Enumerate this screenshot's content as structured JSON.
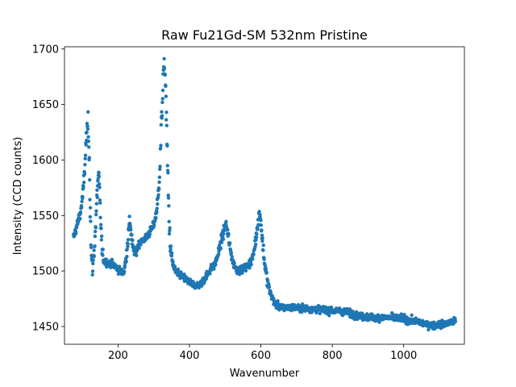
{
  "chart_data": {
    "type": "scatter",
    "title": "Raw Fu21Gd-SM 532nm Pristine",
    "xlabel": "Wavenumber",
    "ylabel": "Intensity (CCD counts)",
    "xlim": [
      50,
      1170
    ],
    "ylim": [
      1434,
      1702
    ],
    "xticks": [
      200,
      400,
      600,
      800,
      1000
    ],
    "yticks": [
      1450,
      1500,
      1550,
      1600,
      1650,
      1700
    ],
    "grid": false,
    "legend": null,
    "marker_color": "#1f77b4",
    "series": [
      {
        "x_range": [
          75,
          1145
        ],
        "profile": [
          [
            75,
            1530
          ],
          [
            85,
            1541
          ],
          [
            95,
            1553
          ],
          [
            102,
            1570
          ],
          [
            108,
            1600
          ],
          [
            112,
            1625
          ],
          [
            116,
            1632
          ],
          [
            119,
            1610
          ],
          [
            122,
            1560
          ],
          [
            125,
            1515
          ],
          [
            128,
            1500
          ],
          [
            133,
            1518
          ],
          [
            138,
            1545
          ],
          [
            143,
            1580
          ],
          [
            146,
            1587
          ],
          [
            150,
            1555
          ],
          [
            154,
            1525
          ],
          [
            158,
            1510
          ],
          [
            170,
            1507
          ],
          [
            185,
            1506
          ],
          [
            200,
            1502
          ],
          [
            210,
            1498
          ],
          [
            217,
            1500
          ],
          [
            222,
            1510
          ],
          [
            228,
            1530
          ],
          [
            233,
            1546
          ],
          [
            238,
            1530
          ],
          [
            242,
            1520
          ],
          [
            248,
            1515
          ],
          [
            255,
            1522
          ],
          [
            262,
            1526
          ],
          [
            270,
            1528
          ],
          [
            280,
            1530
          ],
          [
            290,
            1536
          ],
          [
            298,
            1540
          ],
          [
            305,
            1548
          ],
          [
            312,
            1565
          ],
          [
            318,
            1600
          ],
          [
            323,
            1645
          ],
          [
            327,
            1678
          ],
          [
            330,
            1686
          ],
          [
            333,
            1670
          ],
          [
            336,
            1630
          ],
          [
            339,
            1590
          ],
          [
            343,
            1545
          ],
          [
            347,
            1520
          ],
          [
            352,
            1508
          ],
          [
            360,
            1500
          ],
          [
            370,
            1497
          ],
          [
            385,
            1494
          ],
          [
            400,
            1490
          ],
          [
            415,
            1487
          ],
          [
            430,
            1488
          ],
          [
            440,
            1492
          ],
          [
            450,
            1497
          ],
          [
            460,
            1502
          ],
          [
            470,
            1505
          ],
          [
            480,
            1515
          ],
          [
            490,
            1528
          ],
          [
            497,
            1537
          ],
          [
            502,
            1542
          ],
          [
            508,
            1533
          ],
          [
            515,
            1518
          ],
          [
            522,
            1508
          ],
          [
            530,
            1502
          ],
          [
            540,
            1500
          ],
          [
            550,
            1502
          ],
          [
            560,
            1504
          ],
          [
            570,
            1507
          ],
          [
            578,
            1513
          ],
          [
            585,
            1527
          ],
          [
            590,
            1540
          ],
          [
            595,
            1552
          ],
          [
            600,
            1545
          ],
          [
            605,
            1525
          ],
          [
            610,
            1508
          ],
          [
            620,
            1487
          ],
          [
            630,
            1477
          ],
          [
            640,
            1470
          ],
          [
            660,
            1467
          ],
          [
            700,
            1467
          ],
          [
            740,
            1466
          ],
          [
            780,
            1465
          ],
          [
            820,
            1464
          ],
          [
            840,
            1463
          ],
          [
            880,
            1459
          ],
          [
            920,
            1458
          ],
          [
            960,
            1458
          ],
          [
            1000,
            1457
          ],
          [
            1040,
            1454
          ],
          [
            1080,
            1451
          ],
          [
            1110,
            1452
          ],
          [
            1145,
            1455
          ]
        ]
      }
    ]
  }
}
